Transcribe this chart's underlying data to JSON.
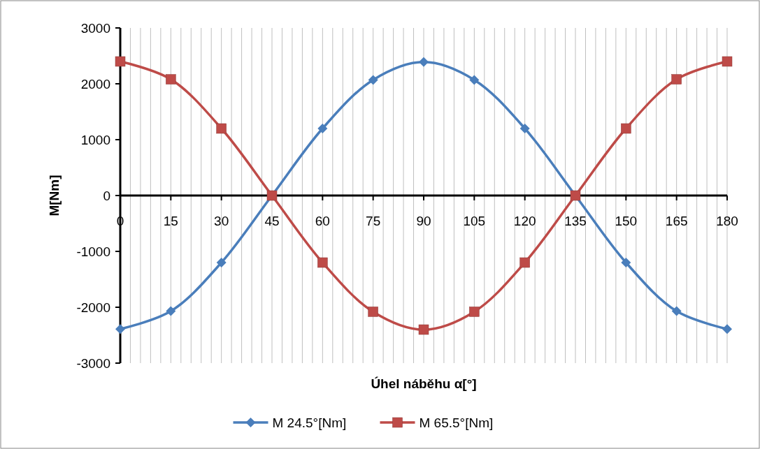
{
  "chart_data": {
    "type": "line",
    "xlabel": "Úhel náběhu α[°]",
    "ylabel": "M[Nm]",
    "x": [
      0,
      15,
      30,
      45,
      60,
      75,
      90,
      105,
      120,
      135,
      150,
      165,
      180
    ],
    "series": [
      {
        "name": "M 24.5°[Nm]",
        "color": "#4a7ebb",
        "marker": "diamond",
        "values": [
          -2390,
          -2070,
          -1200,
          0,
          1200,
          2070,
          2390,
          2070,
          1200,
          0,
          -1200,
          -2070,
          -2390
        ]
      },
      {
        "name": "M 65.5°[Nm]",
        "color": "#be4b48",
        "marker": "square",
        "values": [
          2400,
          2080,
          1200,
          0,
          -1200,
          -2080,
          -2400,
          -2080,
          -1200,
          0,
          1200,
          2080,
          2400
        ]
      }
    ],
    "xlim": [
      0,
      180
    ],
    "xticks": [
      0,
      {
        "value": 3,
        "label": null
      },
      {
        "value": 6,
        "label": null
      },
      {
        "value": 9,
        "label": null
      },
      {
        "value": 12,
        "label": null
      },
      15,
      {
        "value": 18,
        "label": null
      },
      {
        "value": 21,
        "label": null
      },
      {
        "value": 24,
        "label": null
      },
      {
        "value": 27,
        "label": null
      },
      30,
      {
        "value": 33,
        "label": null
      },
      {
        "value": 36,
        "label": null
      },
      {
        "value": 39,
        "label": null
      },
      {
        "value": 42,
        "label": null
      },
      45,
      {
        "value": 48,
        "label": null
      },
      {
        "value": 51,
        "label": null
      },
      {
        "value": 54,
        "label": null
      },
      {
        "value": 57,
        "label": null
      },
      60,
      {
        "value": 63,
        "label": null
      },
      {
        "value": 66,
        "label": null
      },
      {
        "value": 69,
        "label": null
      },
      {
        "value": 72,
        "label": null
      },
      75,
      {
        "value": 78,
        "label": null
      },
      {
        "value": 81,
        "label": null
      },
      {
        "value": 84,
        "label": null
      },
      {
        "value": 87,
        "label": null
      },
      90,
      {
        "value": 93,
        "label": null
      },
      {
        "value": 96,
        "label": null
      },
      {
        "value": 99,
        "label": null
      },
      {
        "value": 102,
        "label": null
      },
      105,
      {
        "value": 108,
        "label": null
      },
      {
        "value": 111,
        "label": null
      },
      {
        "value": 114,
        "label": null
      },
      {
        "value": 117,
        "label": null
      },
      120,
      {
        "value": 123,
        "label": null
      },
      {
        "value": 126,
        "label": null
      },
      {
        "value": 129,
        "label": null
      },
      {
        "value": 132,
        "label": null
      },
      135,
      {
        "value": 138,
        "label": null
      },
      {
        "value": 141,
        "label": null
      },
      {
        "value": 144,
        "label": null
      },
      {
        "value": 147,
        "label": null
      },
      150,
      {
        "value": 153,
        "label": null
      },
      {
        "value": 156,
        "label": null
      },
      {
        "value": 159,
        "label": null
      },
      {
        "value": 162,
        "label": null
      },
      165,
      {
        "value": 168,
        "label": null
      },
      {
        "value": 171,
        "label": null
      },
      {
        "value": 174,
        "label": null
      },
      {
        "value": 177,
        "label": null
      },
      180
    ],
    "ylim": [
      -3000,
      3000
    ],
    "yticks": [
      -3000,
      -2000,
      -1000,
      0,
      1000,
      2000,
      3000
    ],
    "grid": "x",
    "legend": "bottom",
    "line_style": "solid"
  }
}
